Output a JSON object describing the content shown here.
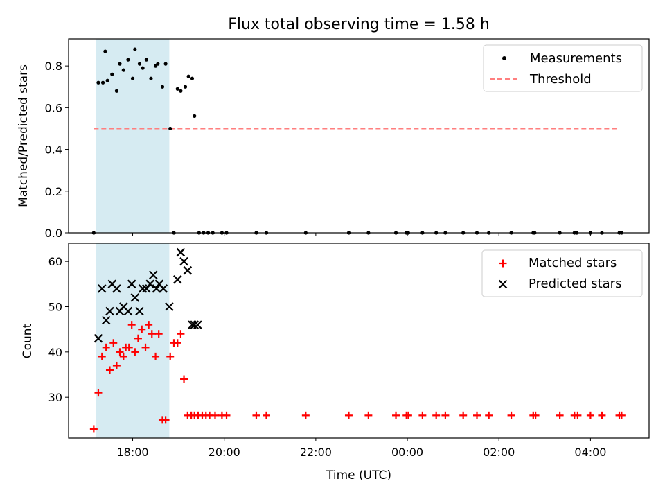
{
  "title": "Flux total observing time = 1.58 h",
  "colors": {
    "measurements": "#000000",
    "threshold": "#ff7f7f",
    "matched": "#ff0000",
    "predicted": "#000000",
    "shade": "#add8e6"
  },
  "chart_data": [
    {
      "type": "scatter",
      "panel": "top",
      "ylabel": "Matched/Predicted stars",
      "xlim": [
        16.6,
        29.28
      ],
      "ylim": [
        0,
        0.93
      ],
      "yticks": [
        0.0,
        0.2,
        0.4,
        0.6,
        0.8
      ],
      "ytick_labels": [
        "0.0",
        "0.2",
        "0.4",
        "0.6",
        "0.8"
      ],
      "shaded_span": [
        17.2,
        18.8
      ],
      "legend_position": "top-right",
      "legend": [
        "Measurements",
        "Threshold"
      ],
      "threshold": {
        "name": "Threshold",
        "x_range": [
          17.15,
          28.6
        ],
        "y": 0.5
      },
      "series": [
        {
          "name": "Measurements",
          "x": [
            17.15,
            17.25,
            17.35,
            17.4,
            17.45,
            17.55,
            17.65,
            17.72,
            17.8,
            17.9,
            18.0,
            18.05,
            18.15,
            18.22,
            18.3,
            18.4,
            18.5,
            18.55,
            18.65,
            18.72,
            18.82,
            18.9,
            18.98,
            19.05,
            19.15,
            19.22,
            19.3,
            19.35,
            19.45,
            19.55,
            19.65,
            19.75,
            19.95,
            20.05,
            20.7,
            20.92,
            21.78,
            22.72,
            23.15,
            23.75,
            23.98,
            24.02,
            24.33,
            24.63,
            24.83,
            25.22,
            25.52,
            25.78,
            26.27,
            26.75,
            26.78,
            27.33,
            27.65,
            27.7,
            28.0,
            28.25,
            28.63,
            28.68
          ],
          "y": [
            0.0,
            0.72,
            0.72,
            0.87,
            0.73,
            0.76,
            0.68,
            0.81,
            0.78,
            0.83,
            0.74,
            0.88,
            0.81,
            0.79,
            0.83,
            0.74,
            0.8,
            0.81,
            0.7,
            0.81,
            0.5,
            0.0,
            0.69,
            0.68,
            0.7,
            0.75,
            0.74,
            0.56,
            0.0,
            0.0,
            0.0,
            0.0,
            0.0,
            0.0,
            0.0,
            0.0,
            0.0,
            0.0,
            0.0,
            0.0,
            0.0,
            0.0,
            0.0,
            0.0,
            0.0,
            0.0,
            0.0,
            0.0,
            0.0,
            0.0,
            0.0,
            0.0,
            0.0,
            0.0,
            0.0,
            0.0,
            0.0,
            0.0
          ]
        }
      ]
    },
    {
      "type": "scatter",
      "panel": "bottom",
      "ylabel": "Count",
      "xlabel": "Time (UTC)",
      "xlim": [
        16.6,
        29.28
      ],
      "ylim": [
        21,
        64
      ],
      "yticks": [
        30,
        40,
        50,
        60
      ],
      "ytick_labels": [
        "30",
        "40",
        "50",
        "60"
      ],
      "xticks": [
        18,
        20,
        22,
        24,
        26,
        28
      ],
      "xtick_labels": [
        "18:00",
        "20:00",
        "22:00",
        "00:00",
        "02:00",
        "04:00"
      ],
      "shaded_span": [
        17.2,
        18.8
      ],
      "legend_position": "top-right",
      "legend": [
        "Matched stars",
        "Predicted stars"
      ],
      "series": [
        {
          "name": "Matched stars",
          "marker": "plus",
          "x": [
            17.15,
            17.25,
            17.33,
            17.42,
            17.5,
            17.58,
            17.65,
            17.72,
            17.8,
            17.85,
            17.92,
            17.98,
            18.05,
            18.12,
            18.2,
            18.28,
            18.35,
            18.42,
            18.5,
            18.57,
            18.65,
            18.72,
            18.82,
            18.9,
            18.98,
            19.05,
            19.12,
            19.2,
            19.28,
            19.35,
            19.43,
            19.52,
            19.6,
            19.68,
            19.8,
            19.95,
            20.05,
            20.7,
            20.92,
            21.78,
            22.72,
            23.15,
            23.75,
            23.98,
            24.02,
            24.33,
            24.63,
            24.83,
            25.22,
            25.52,
            25.78,
            26.27,
            26.75,
            26.8,
            27.33,
            27.65,
            27.72,
            28.0,
            28.25,
            28.63,
            28.68
          ],
          "y": [
            23,
            31,
            39,
            41,
            36,
            42,
            37,
            40,
            39,
            41,
            41,
            46,
            40,
            43,
            45,
            41,
            46,
            44,
            39,
            44,
            25,
            25,
            39,
            42,
            42,
            44,
            34,
            26,
            26,
            26,
            26,
            26,
            26,
            26,
            26,
            26,
            26,
            26,
            26,
            26,
            26,
            26,
            26,
            26,
            26,
            26,
            26,
            26,
            26,
            26,
            26,
            26,
            26,
            26,
            26,
            26,
            26,
            26,
            26,
            26,
            26
          ]
        },
        {
          "name": "Predicted stars",
          "marker": "x",
          "x": [
            17.25,
            17.33,
            17.42,
            17.5,
            17.55,
            17.65,
            17.72,
            17.8,
            17.9,
            17.98,
            18.05,
            18.15,
            18.22,
            18.3,
            18.38,
            18.45,
            18.52,
            18.58,
            18.67,
            18.8,
            18.98,
            19.05,
            19.12,
            19.2,
            19.3,
            19.35,
            19.42
          ],
          "y": [
            43,
            54,
            47,
            49,
            55,
            54,
            49,
            50,
            49,
            55,
            52,
            49,
            54,
            54,
            55,
            57,
            54,
            55,
            54,
            50,
            56,
            62,
            60,
            58,
            46,
            46,
            46
          ]
        }
      ]
    }
  ]
}
